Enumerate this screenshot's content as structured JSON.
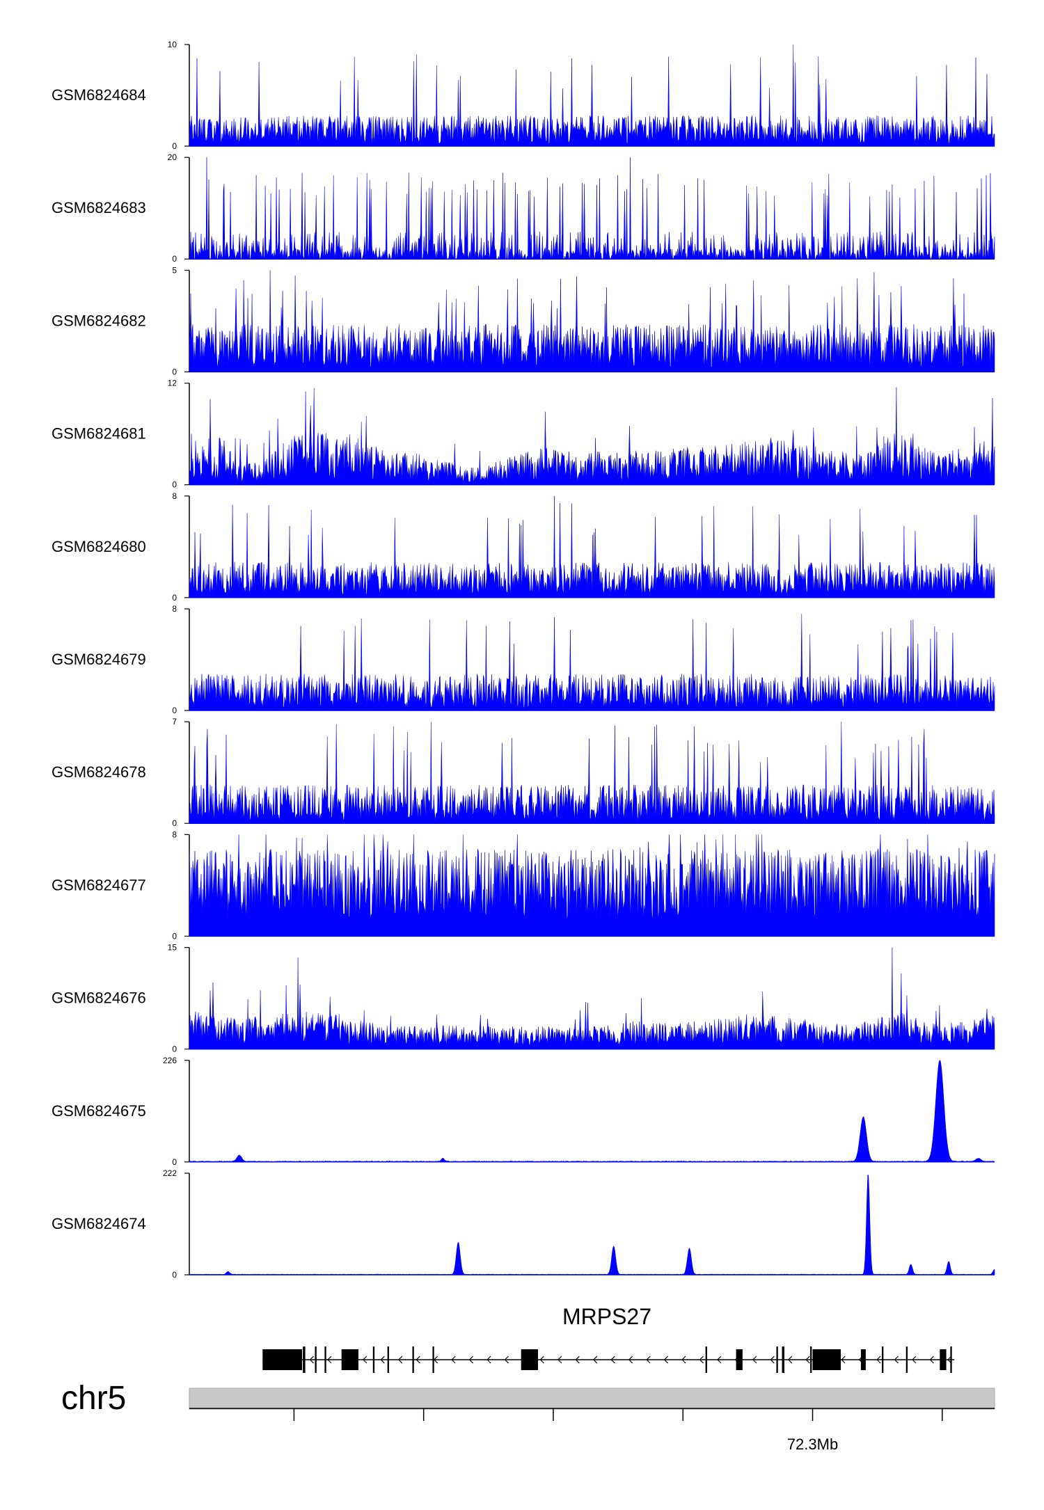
{
  "chart_data": {
    "type": "area",
    "fill_color": "#0000ff",
    "axis_color": "#000000",
    "gene_color": "#000000",
    "ideogram_color": "#c8c8c8",
    "tracks": [
      {
        "name": "GSM6824684",
        "ymax": 10,
        "ymin": 0,
        "ymin_label": "0",
        "ymax_label": "10",
        "style": "spiky",
        "seed": 11,
        "base": 0.08,
        "level": 0.22,
        "peak": 0.55,
        "heavy": 0.9,
        "p_peak": 0.03,
        "gap": 0.0,
        "spikes": [
          {
            "x": 0.282,
            "h": 0.9
          },
          {
            "x": 0.75,
            "h": 1.0
          },
          {
            "x": 0.5,
            "h": 0.8
          },
          {
            "x": 0.94,
            "h": 0.8
          }
        ]
      },
      {
        "name": "GSM6824683",
        "ymax": 20,
        "ymin": 0,
        "ymin_label": "0",
        "ymax_label": "20",
        "style": "sparse",
        "seed": 23,
        "base": 0.0,
        "level": 0.18,
        "peak": 0.6,
        "heavy": 0.85,
        "p_peak": 0.06,
        "gap": 0.18,
        "spikes": [
          {
            "x": 0.022,
            "h": 1.0
          },
          {
            "x": 0.548,
            "h": 1.0
          },
          {
            "x": 0.445,
            "h": 0.8
          },
          {
            "x": 0.82,
            "h": 0.75
          }
        ]
      },
      {
        "name": "GSM6824682",
        "ymax": 5,
        "ymin": 0,
        "ymin_label": "0",
        "ymax_label": "5",
        "style": "spiky",
        "seed": 37,
        "base": 0.15,
        "level": 0.32,
        "peak": 0.62,
        "heavy": 0.95,
        "p_peak": 0.05,
        "gap": 0.0,
        "spikes": [
          {
            "x": 0.1,
            "h": 1.0
          },
          {
            "x": 0.85,
            "h": 0.98
          }
        ]
      },
      {
        "name": "GSM6824681",
        "ymax": 12,
        "ymin": 0,
        "ymin_label": "0",
        "ymax_label": "12",
        "style": "dense",
        "seed": 41,
        "base": 0.05,
        "level": 0.3,
        "peak": 0.55,
        "heavy": 0.9,
        "p_peak": 0.02,
        "gap": 0.0,
        "spikes": [],
        "profile": [
          [
            0.0,
            0.6
          ],
          [
            0.04,
            0.5
          ],
          [
            0.06,
            0.15
          ],
          [
            0.09,
            0.08
          ],
          [
            0.12,
            0.5
          ],
          [
            0.16,
            0.6
          ],
          [
            0.2,
            0.55
          ],
          [
            0.24,
            0.3
          ],
          [
            0.28,
            0.25
          ],
          [
            0.32,
            0.1
          ],
          [
            0.36,
            0.04
          ],
          [
            0.4,
            0.2
          ],
          [
            0.44,
            0.35
          ],
          [
            0.48,
            0.25
          ],
          [
            0.52,
            0.3
          ],
          [
            0.56,
            0.28
          ],
          [
            0.6,
            0.33
          ],
          [
            0.64,
            0.35
          ],
          [
            0.68,
            0.45
          ],
          [
            0.72,
            0.5
          ],
          [
            0.76,
            0.4
          ],
          [
            0.8,
            0.3
          ],
          [
            0.84,
            0.2
          ],
          [
            0.86,
            0.5
          ],
          [
            0.88,
            0.6
          ],
          [
            0.9,
            0.55
          ],
          [
            0.93,
            0.2
          ],
          [
            0.95,
            0.3
          ],
          [
            0.98,
            0.4
          ],
          [
            1.0,
            0.5
          ]
        ]
      },
      {
        "name": "GSM6824680",
        "ymax": 8,
        "ymin": 0,
        "ymin_label": "0",
        "ymax_label": "8",
        "style": "spiky",
        "seed": 53,
        "base": 0.1,
        "level": 0.25,
        "peak": 0.6,
        "heavy": 0.95,
        "p_peak": 0.04,
        "gap": 0.0,
        "spikes": [
          {
            "x": 0.453,
            "h": 1.0
          }
        ]
      },
      {
        "name": "GSM6824679",
        "ymax": 8,
        "ymin": 0,
        "ymin_label": "0",
        "ymax_label": "8",
        "style": "spiky",
        "seed": 61,
        "base": 0.08,
        "level": 0.28,
        "peak": 0.6,
        "heavy": 0.92,
        "p_peak": 0.04,
        "gap": 0.0,
        "spikes": [
          {
            "x": 0.76,
            "h": 0.95
          }
        ]
      },
      {
        "name": "GSM6824678",
        "ymax": 7,
        "ymin": 0,
        "ymin_label": "0",
        "ymax_label": "7",
        "style": "spiky",
        "seed": 73,
        "base": 0.08,
        "level": 0.3,
        "peak": 0.6,
        "heavy": 0.98,
        "p_peak": 0.05,
        "gap": 0.0,
        "spikes": [
          {
            "x": 0.3,
            "h": 1.0
          },
          {
            "x": 0.81,
            "h": 1.0
          }
        ]
      },
      {
        "name": "GSM6824677",
        "ymax": 8,
        "ymin": 0,
        "ymin_label": "0",
        "ymax_label": "8",
        "style": "dense",
        "seed": 89,
        "base": 0.1,
        "level": 0.3,
        "peak": 0.5,
        "heavy": 0.8,
        "p_peak": 0.025,
        "gap": 0.0,
        "spikes": [
          {
            "x": 0.095,
            "h": 1.0
          },
          {
            "x": 0.57,
            "h": 0.93
          }
        ]
      },
      {
        "name": "GSM6824676",
        "ymax": 15,
        "ymin": 0,
        "ymin_label": "0",
        "ymax_label": "15",
        "style": "dense",
        "seed": 97,
        "base": 0.06,
        "level": 0.25,
        "peak": 0.5,
        "heavy": 0.85,
        "p_peak": 0.02,
        "gap": 0.0,
        "spikes": [
          {
            "x": 0.873,
            "h": 1.0
          },
          {
            "x": 0.135,
            "h": 0.9
          }
        ],
        "profile": [
          [
            0.0,
            0.45
          ],
          [
            0.06,
            0.3
          ],
          [
            0.12,
            0.4
          ],
          [
            0.16,
            0.45
          ],
          [
            0.2,
            0.35
          ],
          [
            0.26,
            0.15
          ],
          [
            0.32,
            0.18
          ],
          [
            0.4,
            0.15
          ],
          [
            0.5,
            0.15
          ],
          [
            0.55,
            0.25
          ],
          [
            0.6,
            0.2
          ],
          [
            0.66,
            0.3
          ],
          [
            0.7,
            0.4
          ],
          [
            0.74,
            0.35
          ],
          [
            0.8,
            0.2
          ],
          [
            0.84,
            0.25
          ],
          [
            0.88,
            0.45
          ],
          [
            0.92,
            0.2
          ],
          [
            0.96,
            0.25
          ],
          [
            1.0,
            0.35
          ]
        ]
      },
      {
        "name": "GSM6824675",
        "ymax": 226,
        "ymin": 0,
        "ymin_label": "0",
        "ymax_label": "226",
        "style": "peaks",
        "seed": 5,
        "base": 0.008,
        "peaks": [
          {
            "x": 0.062,
            "h": 0.06,
            "w": 0.003
          },
          {
            "x": 0.315,
            "h": 0.03,
            "w": 0.002
          },
          {
            "x": 0.837,
            "h": 0.44,
            "w": 0.004
          },
          {
            "x": 0.932,
            "h": 1.0,
            "w": 0.005
          },
          {
            "x": 0.98,
            "h": 0.03,
            "w": 0.003
          }
        ]
      },
      {
        "name": "GSM6824674",
        "ymax": 222,
        "ymin": 0,
        "ymin_label": "0",
        "ymax_label": "222",
        "style": "peaks",
        "seed": 7,
        "base": 0.006,
        "peaks": [
          {
            "x": 0.048,
            "h": 0.03,
            "w": 0.002
          },
          {
            "x": 0.334,
            "h": 0.32,
            "w": 0.0025
          },
          {
            "x": 0.527,
            "h": 0.28,
            "w": 0.0025
          },
          {
            "x": 0.621,
            "h": 0.26,
            "w": 0.0025
          },
          {
            "x": 0.843,
            "h": 1.0,
            "w": 0.002
          },
          {
            "x": 0.896,
            "h": 0.1,
            "w": 0.002
          },
          {
            "x": 0.943,
            "h": 0.13,
            "w": 0.002
          },
          {
            "x": 1.0,
            "h": 0.05,
            "w": 0.002
          }
        ]
      }
    ],
    "gene": {
      "name": "MRPS27",
      "strand": "-",
      "span": [
        0.091,
        0.95
      ],
      "exons": [
        [
          0.091,
          0.14,
          "wide"
        ],
        [
          0.141,
          0.144,
          "thin"
        ],
        [
          0.156,
          0.158,
          "thin"
        ],
        [
          0.168,
          0.17,
          "thin"
        ],
        [
          0.189,
          0.21,
          "wide"
        ],
        [
          0.228,
          0.23,
          "thin"
        ],
        [
          0.246,
          0.248,
          "thin"
        ],
        [
          0.277,
          0.279,
          "thin"
        ],
        [
          0.302,
          0.304,
          "thin"
        ],
        [
          0.412,
          0.433,
          "wide"
        ],
        [
          0.641,
          0.643,
          "thin"
        ],
        [
          0.679,
          0.687,
          "wide"
        ],
        [
          0.729,
          0.731,
          "thin"
        ],
        [
          0.736,
          0.739,
          "thin"
        ],
        [
          0.771,
          0.773,
          "thin"
        ],
        [
          0.774,
          0.809,
          "wide"
        ],
        [
          0.834,
          0.84,
          "wide"
        ],
        [
          0.86,
          0.862,
          "thin"
        ],
        [
          0.89,
          0.892,
          "thin"
        ],
        [
          0.932,
          0.94,
          "wide"
        ],
        [
          0.945,
          0.947,
          "thin"
        ]
      ]
    },
    "chromosome": "chr5",
    "ticks": [
      0.13,
      0.291,
      0.452,
      0.613,
      0.774,
      0.935
    ],
    "tick_label_index": 4,
    "tick_label": "72.3Mb"
  }
}
